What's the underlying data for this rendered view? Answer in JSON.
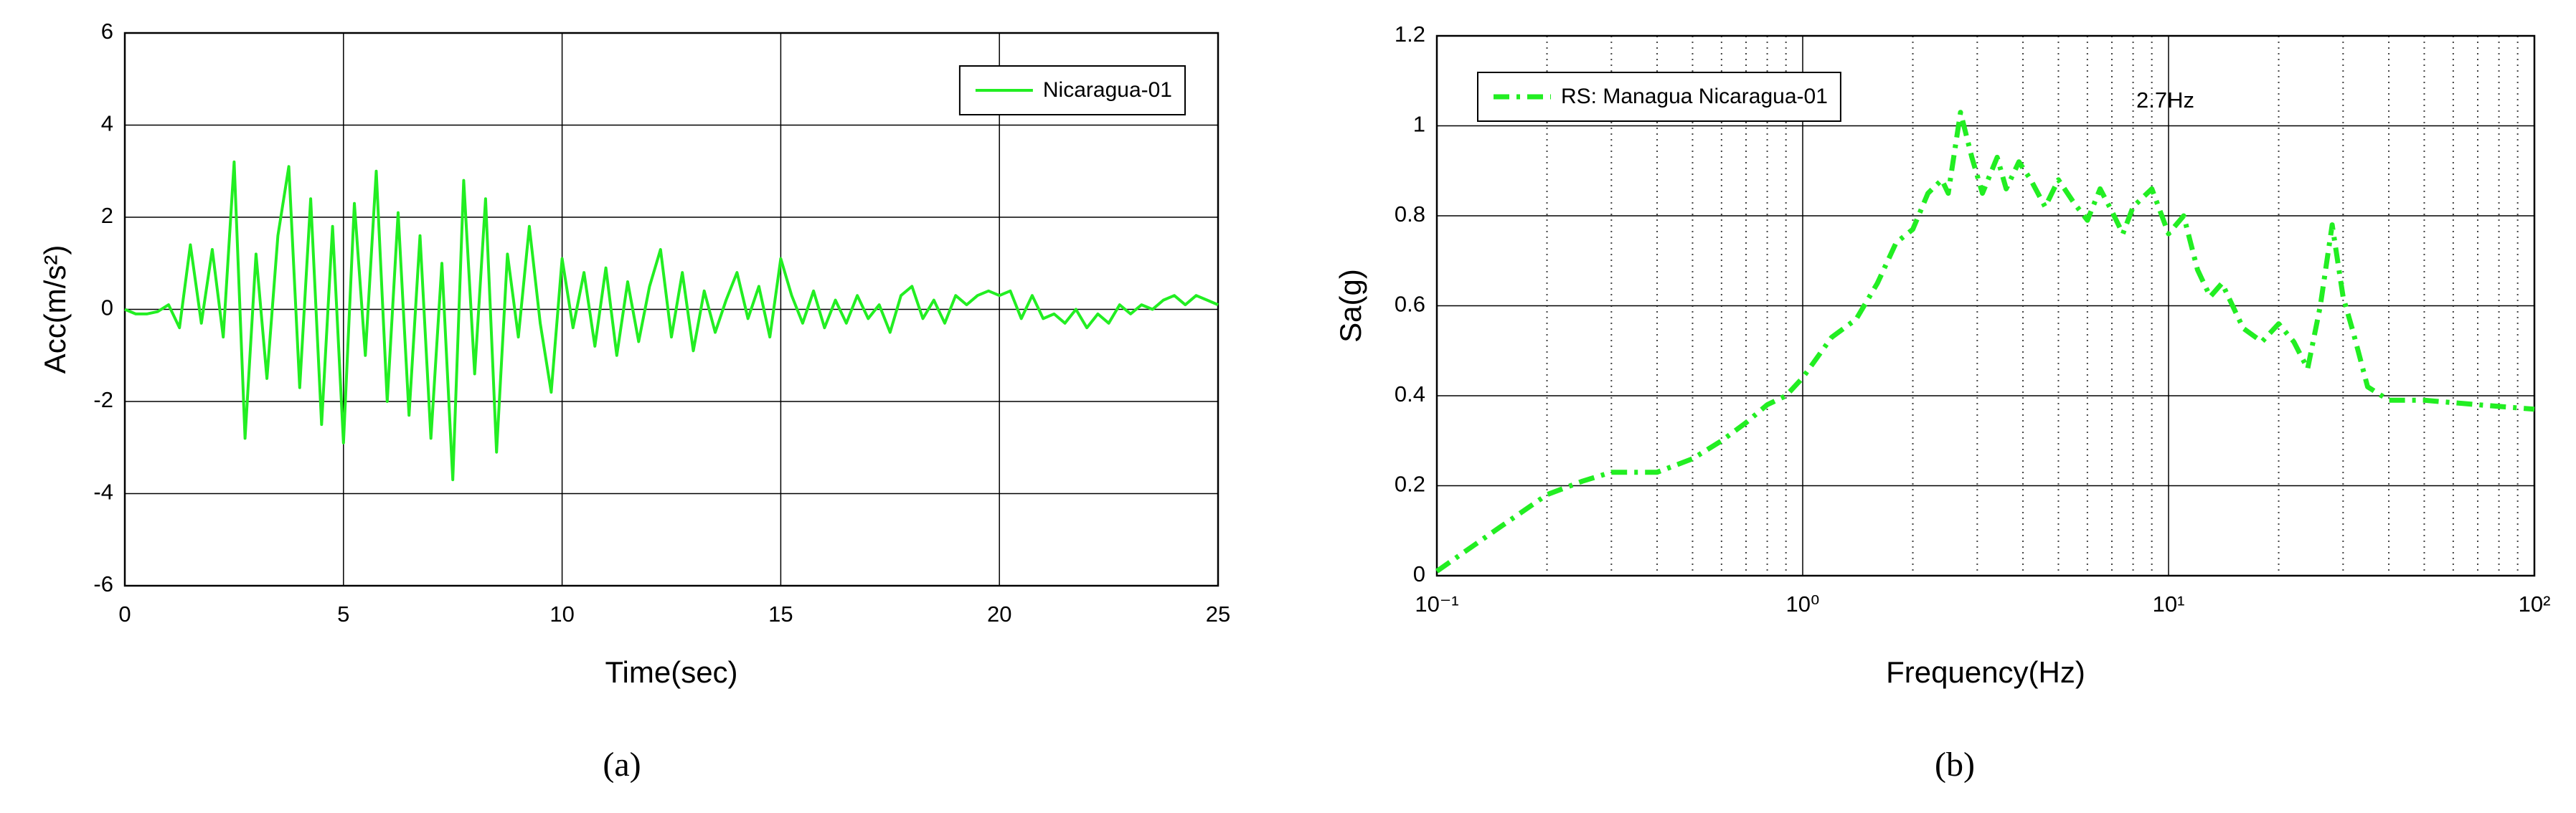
{
  "chart_data": [
    {
      "type": "line",
      "panel_label": "(a)",
      "xlabel": "Time(sec)",
      "ylabel": "Acc(m/s²)",
      "xlim": [
        0,
        25
      ],
      "xticks": [
        0,
        5,
        10,
        15,
        20,
        25
      ],
      "ylim": [
        -6,
        6
      ],
      "yticks": [
        -6,
        -4,
        -2,
        0,
        2,
        4,
        6
      ],
      "grid": true,
      "legend": "upper right",
      "xscale": "linear",
      "x": [
        0,
        0.25,
        0.5,
        0.75,
        1,
        1.25,
        1.5,
        1.75,
        2,
        2.25,
        2.5,
        2.75,
        3,
        3.25,
        3.5,
        3.75,
        4,
        4.25,
        4.5,
        4.75,
        5,
        5.25,
        5.5,
        5.75,
        6,
        6.25,
        6.5,
        6.75,
        7,
        7.25,
        7.5,
        7.75,
        8,
        8.25,
        8.5,
        8.75,
        9,
        9.25,
        9.5,
        9.75,
        10,
        10.25,
        10.5,
        10.75,
        11,
        11.25,
        11.5,
        11.75,
        12,
        12.25,
        12.5,
        12.75,
        13,
        13.25,
        13.5,
        13.75,
        14,
        14.25,
        14.5,
        14.75,
        15,
        15.25,
        15.5,
        15.75,
        16,
        16.25,
        16.5,
        16.75,
        17,
        17.25,
        17.5,
        17.75,
        18,
        18.25,
        18.5,
        18.75,
        19,
        19.25,
        19.5,
        19.75,
        20,
        20.25,
        20.5,
        20.75,
        21,
        21.25,
        21.5,
        21.75,
        22,
        22.25,
        22.5,
        22.75,
        23,
        23.25,
        23.5,
        23.75,
        24,
        24.25,
        24.5,
        24.75,
        25
      ],
      "series": [
        {
          "name": "Nicaragua-01",
          "color": "#22ee22",
          "linestyle": "solid",
          "values": [
            0,
            -0.1,
            -0.1,
            -0.05,
            0.1,
            -0.4,
            1.4,
            -0.3,
            1.3,
            -0.6,
            3.2,
            -2.8,
            1.2,
            -1.5,
            1.6,
            3.1,
            -1.7,
            2.4,
            -2.5,
            1.8,
            -2.9,
            2.3,
            -1.0,
            3.0,
            -2.0,
            2.1,
            -2.3,
            1.6,
            -2.8,
            1.0,
            -3.7,
            2.8,
            -1.4,
            2.4,
            -3.1,
            1.2,
            -0.6,
            1.8,
            -0.3,
            -1.8,
            1.1,
            -0.4,
            0.8,
            -0.8,
            0.9,
            -1.0,
            0.6,
            -0.7,
            0.5,
            1.3,
            -0.6,
            0.8,
            -0.9,
            0.4,
            -0.5,
            0.2,
            0.8,
            -0.2,
            0.5,
            -0.6,
            1.1,
            0.3,
            -0.3,
            0.4,
            -0.4,
            0.2,
            -0.3,
            0.3,
            -0.2,
            0.1,
            -0.5,
            0.3,
            0.5,
            -0.2,
            0.2,
            -0.3,
            0.3,
            0.1,
            0.3,
            0.4,
            0.3,
            0.4,
            -0.2,
            0.3,
            -0.2,
            -0.1,
            -0.3,
            0,
            -0.4,
            -0.1,
            -0.3,
            0.1,
            -0.1,
            0.1,
            0,
            0.2,
            0.3,
            0.1,
            0.3,
            0.2,
            0.1
          ]
        }
      ]
    },
    {
      "type": "line",
      "panel_label": "(b)",
      "xlabel": "Frequency(Hz)",
      "ylabel": "Sa(g)",
      "annotation": "2.7Hz",
      "xscale": "log",
      "xlim": [
        0.1,
        100
      ],
      "xticks": [
        {
          "value": 0.1,
          "label": "10⁻¹"
        },
        {
          "value": 1,
          "label": "10⁰"
        },
        {
          "value": 10,
          "label": "10¹"
        },
        {
          "value": 100,
          "label": "10²"
        }
      ],
      "minor_xticks": [
        0.2,
        0.3,
        0.4,
        0.5,
        0.6,
        0.7,
        0.8,
        0.9,
        2,
        3,
        4,
        5,
        6,
        7,
        8,
        9,
        20,
        30,
        40,
        50,
        60,
        70,
        80,
        90
      ],
      "ylim": [
        0,
        1.2
      ],
      "yticks": [
        0,
        0.2,
        0.4,
        0.6,
        0.8,
        1,
        1.2
      ],
      "grid": true,
      "legend": "upper left",
      "x": [
        0.1,
        0.15,
        0.2,
        0.25,
        0.3,
        0.35,
        0.4,
        0.5,
        0.6,
        0.7,
        0.8,
        0.9,
        1,
        1.2,
        1.4,
        1.6,
        1.8,
        2,
        2.2,
        2.4,
        2.5,
        2.7,
        2.9,
        3.1,
        3.4,
        3.6,
        3.9,
        4.2,
        4.6,
        5,
        5.5,
        6,
        6.5,
        7,
        7.5,
        8,
        9,
        10,
        11,
        12,
        13,
        14,
        16,
        18,
        20,
        22,
        24,
        26,
        28,
        30,
        32,
        35,
        40,
        50,
        70,
        100
      ],
      "series": [
        {
          "name": "RS: Managua Nicaragua-01",
          "color": "#22ee22",
          "linestyle": "dashdot",
          "values": [
            0.01,
            0.11,
            0.18,
            0.21,
            0.23,
            0.23,
            0.23,
            0.26,
            0.3,
            0.34,
            0.38,
            0.4,
            0.44,
            0.53,
            0.57,
            0.65,
            0.74,
            0.77,
            0.85,
            0.88,
            0.85,
            1.03,
            0.93,
            0.85,
            0.93,
            0.86,
            0.92,
            0.88,
            0.82,
            0.88,
            0.83,
            0.79,
            0.86,
            0.81,
            0.76,
            0.82,
            0.86,
            0.76,
            0.8,
            0.68,
            0.62,
            0.65,
            0.55,
            0.52,
            0.56,
            0.52,
            0.46,
            0.6,
            0.78,
            0.62,
            0.54,
            0.42,
            0.39,
            0.39,
            0.38,
            0.37
          ]
        }
      ]
    }
  ]
}
